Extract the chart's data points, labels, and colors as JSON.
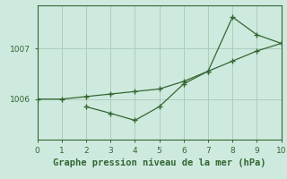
{
  "line1_x": [
    0,
    1,
    2,
    3,
    4,
    5,
    6,
    7,
    8,
    9,
    10
  ],
  "line1_y": [
    1006.0,
    1006.0,
    1006.05,
    1006.1,
    1006.15,
    1006.2,
    1006.35,
    1006.55,
    1006.75,
    1006.95,
    1007.1
  ],
  "line2_x": [
    2,
    3,
    4,
    5,
    6,
    7,
    8,
    9,
    10
  ],
  "line2_y": [
    1005.85,
    1005.72,
    1005.58,
    1005.85,
    1006.3,
    1006.55,
    1007.62,
    1007.27,
    1007.1
  ],
  "line_color": "#336633",
  "bg_color": "#ceeade",
  "grid_color": "#aac8b8",
  "xlabel": "Graphe pression niveau de la mer (hPa)",
  "xlim": [
    0,
    10
  ],
  "ylim": [
    1005.2,
    1007.85
  ],
  "yticks": [
    1006,
    1007
  ],
  "xticks": [
    0,
    1,
    2,
    3,
    4,
    5,
    6,
    7,
    8,
    9,
    10
  ],
  "xlabel_fontsize": 7.5,
  "tick_fontsize": 6.5,
  "marker": "+",
  "markersize": 4,
  "linewidth": 0.9
}
